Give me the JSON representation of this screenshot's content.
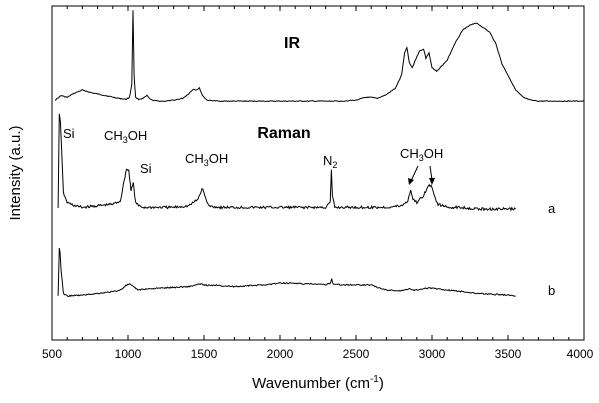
{
  "chart_data": {
    "type": "line",
    "title": "",
    "xlabel_main": "Wavenumber (cm",
    "xlabel_sup": "-1",
    "xlabel_end": ")",
    "ylabel": "Intensity (a.u.)",
    "xlim": [
      500,
      4000
    ],
    "y_scale": "arbitrary units (offset spectra), no tick labels",
    "xticks": [
      "500",
      "1000",
      "1500",
      "2000",
      "2500",
      "3000",
      "3500",
      "4000"
    ],
    "grid": false,
    "legend": "none",
    "section_labels": {
      "ir": "IR",
      "raman": "Raman"
    },
    "series": [
      {
        "name": "IR",
        "x": [
          520,
          560,
          600,
          640,
          700,
          760,
          820,
          880,
          940,
          985,
          1010,
          1025,
          1033,
          1040,
          1050,
          1070,
          1100,
          1125,
          1140,
          1160,
          1200,
          1250,
          1300,
          1360,
          1400,
          1430,
          1450,
          1470,
          1490,
          1520,
          1600,
          1800,
          2000,
          2100,
          2200,
          2300,
          2400,
          2500,
          2560,
          2600,
          2640,
          2700,
          2760,
          2800,
          2820,
          2835,
          2850,
          2870,
          2900,
          2920,
          2945,
          2960,
          2980,
          3000,
          3030,
          3100,
          3150,
          3200,
          3250,
          3290,
          3330,
          3380,
          3420,
          3460,
          3500,
          3550,
          3600,
          3650,
          3700,
          3800,
          3900,
          4000
        ],
        "y": [
          3,
          8,
          6,
          10,
          14,
          11,
          9,
          7,
          5,
          4,
          6,
          20,
          100,
          30,
          6,
          4,
          5,
          8,
          5,
          3,
          2,
          2,
          3,
          5,
          10,
          15,
          14,
          16,
          8,
          3,
          2,
          2,
          2,
          2,
          2,
          2,
          2,
          3,
          6,
          6,
          5,
          9,
          16,
          30,
          54,
          60,
          44,
          38,
          50,
          56,
          58,
          48,
          54,
          38,
          34,
          46,
          64,
          78,
          84,
          86,
          82,
          76,
          64,
          42,
          30,
          14,
          6,
          3,
          2,
          2,
          2,
          2
        ]
      },
      {
        "name": "a",
        "x": [
          540,
          548,
          555,
          562,
          575,
          600,
          650,
          700,
          800,
          900,
          950,
          975,
          990,
          1005,
          1020,
          1035,
          1050,
          1070,
          1100,
          1200,
          1300,
          1400,
          1460,
          1480,
          1492,
          1505,
          1530,
          1600,
          1800,
          2000,
          2200,
          2300,
          2330,
          2338,
          2345,
          2360,
          2500,
          2700,
          2800,
          2840,
          2860,
          2875,
          2900,
          2940,
          2975,
          2995,
          3015,
          3040,
          3100,
          3200,
          3300,
          3400,
          3500,
          3550
        ],
        "y": [
          0,
          60,
          55,
          40,
          10,
          4,
          2,
          1,
          2,
          3,
          5,
          18,
          25,
          24,
          12,
          16,
          4,
          2,
          1,
          1,
          1,
          2,
          6,
          11,
          13,
          8,
          2,
          1,
          1,
          1,
          1,
          1,
          4,
          24,
          8,
          1,
          1,
          1,
          2,
          5,
          12,
          6,
          4,
          8,
          14,
          15,
          8,
          3,
          1,
          1,
          0,
          0,
          0,
          0
        ]
      },
      {
        "name": "b",
        "x": [
          540,
          548,
          553,
          560,
          575,
          600,
          700,
          800,
          900,
          950,
          985,
          1010,
          1040,
          1070,
          1100,
          1200,
          1300,
          1400,
          1480,
          1500,
          1550,
          1600,
          1610,
          1700,
          1800,
          1900,
          2000,
          2100,
          2150,
          2200,
          2300,
          2330,
          2340,
          2350,
          2400,
          2500,
          2600,
          2640,
          2700,
          2800,
          2840,
          2855,
          2870,
          2900,
          2950,
          3000,
          3050,
          3100,
          3200,
          3300,
          3400,
          3500,
          3550
        ],
        "y": [
          0,
          56,
          50,
          30,
          3,
          0,
          1,
          3,
          5,
          7,
          12,
          14,
          10,
          7,
          8,
          9,
          10,
          11,
          14,
          13,
          12,
          13,
          12,
          11,
          12,
          13,
          15,
          15,
          14,
          14,
          13,
          15,
          20,
          14,
          13,
          13,
          13,
          10,
          7,
          6,
          8,
          9,
          7,
          7,
          9,
          9,
          8,
          7,
          5,
          3,
          2,
          1,
          0
        ]
      }
    ],
    "series_letters": {
      "a": "a",
      "b": "b"
    },
    "annotations": {
      "si_1": "Si",
      "ch3oh_1_pre": "CH",
      "ch3oh_1_sub": "3",
      "ch3oh_1_post": "OH",
      "si_2": "Si",
      "ch3oh_2_pre": "CH",
      "ch3oh_2_sub": "3",
      "ch3oh_2_post": "OH",
      "n2_pre": "N",
      "n2_sub": "2",
      "ch3oh_3_pre": "CH",
      "ch3oh_3_sub": "3",
      "ch3oh_3_post": "OH"
    }
  }
}
